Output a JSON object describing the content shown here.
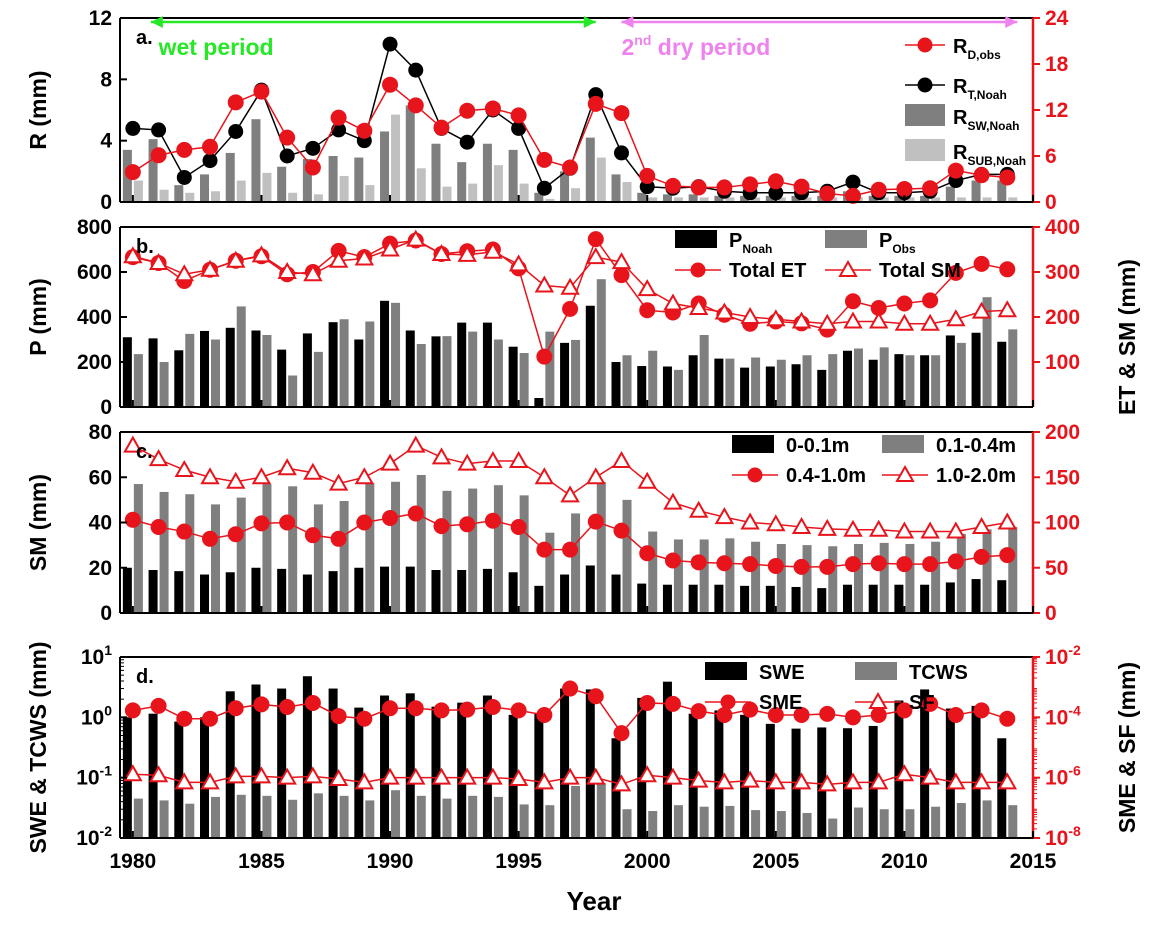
{
  "xlabel": "Year",
  "xlim": [
    1979.5,
    2015
  ],
  "xticks": [
    1980,
    1985,
    1990,
    1995,
    2000,
    2005,
    2010,
    2015
  ],
  "colors": {
    "axis_left": "#000000",
    "axis_right": "#e8141c",
    "line_red": "#e8141c",
    "bar_black": "#000000",
    "bar_gray": "#7f7f7f",
    "bar_light": "#c0c0c0",
    "wet_arrow": "#27e827",
    "dry_arrow": "#ee82ee"
  },
  "chart_data": [
    {
      "type": "bar",
      "panel": "a.",
      "ylabel": "R (mm)",
      "ylim": [
        0,
        12
      ],
      "yticks": [
        0,
        4,
        8,
        12
      ],
      "y2lim": [
        0,
        24
      ],
      "y2ticks": [
        0,
        6,
        12,
        18,
        24
      ],
      "annotations": [
        {
          "text": "wet period",
          "from": 1980,
          "to": 1998,
          "color": "#27e827"
        },
        {
          "text": "2",
          "sup": "nd",
          "rest": " dry period",
          "from": 1999,
          "to": 2014,
          "color": "#ee82ee"
        }
      ],
      "x": [
        1980,
        1981,
        1982,
        1983,
        1984,
        1985,
        1986,
        1987,
        1988,
        1989,
        1990,
        1991,
        1992,
        1993,
        1994,
        1995,
        1996,
        1997,
        1998,
        1999,
        2000,
        2001,
        2002,
        2003,
        2004,
        2005,
        2006,
        2007,
        2008,
        2009,
        2010,
        2011,
        2012,
        2013,
        2014
      ],
      "legend": [
        {
          "name": "R",
          "sub": "D,obs",
          "style": "red-circle"
        },
        {
          "name": "R",
          "sub": "T,Noah",
          "style": "black-circle"
        },
        {
          "name": "R",
          "sub": "SW,Noah",
          "style": "bar-gray"
        },
        {
          "name": "R",
          "sub": "SUB,Noah",
          "style": "bar-light"
        }
      ],
      "series": [
        {
          "name": "R_SW,Noah",
          "kind": "bar",
          "axis": "left",
          "color": "#7f7f7f",
          "values": [
            3.4,
            4.1,
            1.1,
            1.8,
            3.2,
            5.4,
            2.3,
            2.8,
            3.0,
            2.9,
            4.6,
            6.3,
            3.8,
            2.6,
            3.8,
            3.4,
            0.6,
            2.0,
            4.2,
            1.8,
            0.6,
            0.5,
            0.5,
            0.4,
            0.4,
            0.4,
            0.4,
            0.4,
            0.7,
            0.4,
            0.4,
            0.4,
            1.0,
            1.4,
            1.4
          ]
        },
        {
          "name": "R_SUB,Noah",
          "kind": "bar",
          "axis": "left",
          "color": "#c0c0c0",
          "values": [
            1.4,
            0.8,
            0.6,
            0.7,
            1.4,
            1.9,
            0.6,
            0.5,
            1.7,
            1.1,
            5.7,
            2.2,
            1.0,
            1.2,
            2.4,
            1.2,
            0.2,
            0.9,
            2.9,
            1.3,
            0.3,
            0.3,
            0.3,
            0.3,
            0.3,
            0.3,
            0.3,
            0.3,
            0.3,
            0.3,
            0.3,
            0.3,
            0.3,
            0.3,
            0.3
          ]
        },
        {
          "name": "R_T,Noah",
          "kind": "line",
          "axis": "left",
          "marker": "circle",
          "color": "#000000",
          "values": [
            4.8,
            4.7,
            1.6,
            2.7,
            4.6,
            7.3,
            3.0,
            3.5,
            4.7,
            4.0,
            10.3,
            8.6,
            4.8,
            3.9,
            6.0,
            4.8,
            0.9,
            2.2,
            7.0,
            3.2,
            1.0,
            0.9,
            1.0,
            0.7,
            0.6,
            0.6,
            0.6,
            0.7,
            1.3,
            0.6,
            0.6,
            0.7,
            1.4,
            1.8,
            1.8
          ]
        },
        {
          "name": "R_D,obs",
          "kind": "line",
          "axis": "right",
          "marker": "circle",
          "color": "#e8141c",
          "values": [
            3.9,
            6.1,
            6.8,
            7.2,
            13.0,
            14.4,
            8.4,
            4.5,
            11.0,
            9.3,
            15.3,
            12.6,
            9.7,
            11.9,
            12.2,
            11.3,
            5.5,
            4.5,
            12.8,
            11.6,
            3.4,
            2.1,
            1.9,
            1.9,
            2.3,
            2.7,
            2.0,
            1.1,
            0.8,
            1.6,
            1.7,
            1.8,
            4.1,
            3.5,
            3.2
          ]
        }
      ]
    },
    {
      "type": "bar",
      "panel": "b.",
      "ylabel": "P (mm)",
      "ylim": [
        0,
        800
      ],
      "yticks": [
        0,
        200,
        400,
        600,
        800
      ],
      "y2label": "ET & SM (mm)",
      "y2lim": [
        0,
        400
      ],
      "y2ticks": [
        100,
        200,
        300,
        400
      ],
      "x": [
        1980,
        1981,
        1982,
        1983,
        1984,
        1985,
        1986,
        1987,
        1988,
        1989,
        1990,
        1991,
        1992,
        1993,
        1994,
        1995,
        1996,
        1997,
        1998,
        1999,
        2000,
        2001,
        2002,
        2003,
        2004,
        2005,
        2006,
        2007,
        2008,
        2009,
        2010,
        2011,
        2012,
        2013,
        2014
      ],
      "legend": [
        {
          "name": "P",
          "sub": "Noah",
          "style": "bar-black"
        },
        {
          "name": "P",
          "sub": "Obs",
          "style": "bar-gray"
        },
        {
          "name": "Total ET",
          "style": "red-circle"
        },
        {
          "name": "Total SM",
          "style": "red-triangle"
        }
      ],
      "series": [
        {
          "name": "P_Noah",
          "kind": "bar",
          "axis": "left",
          "color": "#000000",
          "values": [
            310,
            305,
            252,
            338,
            352,
            340,
            255,
            327,
            377,
            300,
            472,
            340,
            314,
            375,
            375,
            268,
            40,
            285,
            450,
            200,
            182,
            180,
            230,
            215,
            175,
            180,
            190,
            165,
            250,
            210,
            235,
            230,
            318,
            330,
            290
          ]
        },
        {
          "name": "P_Obs",
          "kind": "bar",
          "axis": "left",
          "color": "#7f7f7f",
          "values": [
            235,
            200,
            325,
            300,
            447,
            320,
            140,
            245,
            390,
            380,
            463,
            280,
            315,
            335,
            300,
            240,
            335,
            298,
            568,
            230,
            250,
            165,
            320,
            215,
            220,
            210,
            230,
            235,
            260,
            265,
            230,
            230,
            285,
            488,
            345
          ]
        },
        {
          "name": "Total ET",
          "kind": "line",
          "axis": "right",
          "marker": "circle",
          "color": "#e8141c",
          "values": [
            333,
            320,
            280,
            305,
            325,
            335,
            295,
            300,
            347,
            333,
            363,
            370,
            340,
            346,
            350,
            308,
            112,
            218,
            373,
            293,
            215,
            210,
            230,
            205,
            185,
            190,
            186,
            172,
            235,
            220,
            230,
            237,
            298,
            318,
            306
          ]
        },
        {
          "name": "Total SM",
          "kind": "line",
          "axis": "right",
          "marker": "triangle",
          "color": "#e8141c",
          "values": [
            335,
            320,
            295,
            305,
            325,
            337,
            300,
            295,
            325,
            330,
            350,
            372,
            340,
            338,
            345,
            317,
            270,
            265,
            333,
            322,
            262,
            230,
            220,
            210,
            200,
            195,
            190,
            185,
            190,
            190,
            185,
            185,
            195,
            212,
            215
          ]
        }
      ]
    },
    {
      "type": "bar",
      "panel": "c.",
      "ylabel": "SM (mm)",
      "ylim": [
        0,
        80
      ],
      "yticks": [
        0,
        20,
        40,
        60,
        80
      ],
      "y2lim": [
        0,
        200
      ],
      "y2ticks": [
        0,
        50,
        100,
        150,
        200
      ],
      "x": [
        1980,
        1981,
        1982,
        1983,
        1984,
        1985,
        1986,
        1987,
        1988,
        1989,
        1990,
        1991,
        1992,
        1993,
        1994,
        1995,
        1996,
        1997,
        1998,
        1999,
        2000,
        2001,
        2002,
        2003,
        2004,
        2005,
        2006,
        2007,
        2008,
        2009,
        2010,
        2011,
        2012,
        2013,
        2014
      ],
      "legend": [
        {
          "name": "0-0.1m",
          "style": "bar-black"
        },
        {
          "name": "0.1-0.4m",
          "style": "bar-gray"
        },
        {
          "name": "0.4-1.0m",
          "style": "red-circle"
        },
        {
          "name": "1.0-2.0m",
          "style": "red-triangle"
        }
      ],
      "series": [
        {
          "name": "0-0.1m",
          "kind": "bar",
          "axis": "left",
          "color": "#000000",
          "values": [
            20,
            19,
            18.5,
            17,
            18,
            20,
            19.5,
            17,
            18.5,
            20,
            20.5,
            20.5,
            19,
            19,
            19.5,
            18,
            12,
            17,
            21,
            17,
            13,
            12.5,
            12.5,
            12.5,
            12,
            12,
            11.5,
            11,
            12.5,
            12.5,
            12.5,
            12.5,
            13.5,
            15,
            14.5
          ]
        },
        {
          "name": "0.1-0.4m",
          "kind": "bar",
          "axis": "left",
          "color": "#7f7f7f",
          "values": [
            57,
            53.5,
            52.5,
            48,
            51,
            57,
            56,
            48,
            49.5,
            57.5,
            58,
            61,
            54,
            55,
            56.5,
            52,
            35.5,
            44,
            58,
            50,
            36,
            32.5,
            32.5,
            33,
            31.5,
            30.5,
            30,
            29.5,
            30.5,
            31,
            30.5,
            31.5,
            35,
            37,
            38
          ]
        },
        {
          "name": "0.4-1.0m",
          "kind": "line",
          "axis": "right",
          "marker": "circle",
          "color": "#e8141c",
          "values": [
            103,
            95,
            90,
            82,
            87,
            99,
            100,
            86,
            82,
            100,
            105,
            110,
            96,
            98,
            102,
            95,
            70,
            70,
            101,
            91,
            66,
            58,
            56,
            55,
            54,
            52,
            51,
            51,
            54,
            55,
            54,
            54,
            57,
            62,
            64
          ]
        },
        {
          "name": "1.0-2.0m",
          "kind": "line",
          "axis": "right",
          "marker": "triangle",
          "color": "#e8141c",
          "values": [
            185,
            170,
            158,
            150,
            145,
            150,
            160,
            155,
            143,
            150,
            165,
            185,
            172,
            165,
            168,
            168,
            150,
            130,
            150,
            168,
            145,
            122,
            113,
            106,
            100,
            98,
            95,
            93,
            92,
            92,
            90,
            90,
            90,
            95,
            100
          ]
        }
      ]
    },
    {
      "type": "bar",
      "panel": "d.",
      "ylabel": "SWE & TCWS (mm)",
      "yscale": "log",
      "ylim": [
        0.01,
        10
      ],
      "yticks": [
        "10^-2",
        "10^-1",
        "10^0",
        "10^1"
      ],
      "y2label": "SME & SF (mm)",
      "y2scale": "log",
      "y2lim": [
        1e-08,
        0.01
      ],
      "y2ticks": [
        "10^-8",
        "10^-6",
        "10^-4",
        "10^-2"
      ],
      "x": [
        1980,
        1981,
        1982,
        1983,
        1984,
        1985,
        1986,
        1987,
        1988,
        1989,
        1990,
        1991,
        1992,
        1993,
        1994,
        1995,
        1996,
        1997,
        1998,
        1999,
        2000,
        2001,
        2002,
        2003,
        2004,
        2005,
        2006,
        2007,
        2008,
        2009,
        2010,
        2011,
        2012,
        2013,
        2014
      ],
      "legend": [
        {
          "name": "SWE",
          "style": "bar-black"
        },
        {
          "name": "TCWS",
          "style": "bar-gray"
        },
        {
          "name": "SME",
          "style": "red-circle"
        },
        {
          "name": "SF",
          "style": "red-triangle"
        }
      ],
      "series": [
        {
          "name": "SWE",
          "kind": "bar",
          "axis": "left",
          "color": "#000000",
          "values": [
            1.0,
            1.15,
            0.85,
            1.0,
            2.7,
            3.5,
            3.0,
            4.8,
            3.0,
            1.45,
            2.3,
            2.5,
            1.5,
            1.75,
            2.3,
            1.1,
            1.15,
            3.0,
            2.9,
            0.45,
            2.1,
            3.9,
            1.15,
            1.3,
            1.1,
            0.78,
            0.65,
            0.68,
            0.66,
            0.72,
            1.9,
            2.9,
            1.4,
            1.55,
            0.45
          ]
        },
        {
          "name": "TCWS",
          "kind": "bar",
          "axis": "left",
          "color": "#7f7f7f",
          "values": [
            0.045,
            0.042,
            0.037,
            0.048,
            0.052,
            0.05,
            0.043,
            0.055,
            0.05,
            0.042,
            0.062,
            0.05,
            0.045,
            0.05,
            0.048,
            0.036,
            0.035,
            0.073,
            0.082,
            0.03,
            0.028,
            0.035,
            0.033,
            0.034,
            0.029,
            0.028,
            0.026,
            0.021,
            0.032,
            0.03,
            0.03,
            0.033,
            0.038,
            0.042,
            0.035
          ]
        },
        {
          "name": "SME",
          "kind": "line",
          "axis": "right",
          "marker": "circle",
          "color": "#e8141c",
          "values": [
            0.00017,
            0.00024,
            9e-05,
            9e-05,
            0.0002,
            0.00027,
            0.00022,
            0.0003,
            0.00011,
            9e-05,
            0.0002,
            0.0002,
            0.00017,
            0.00018,
            0.00022,
            0.00017,
            0.00012,
            0.0009,
            0.0005,
            3e-05,
            0.0003,
            0.00028,
            0.00016,
            0.00012,
            0.00018,
            0.00012,
            0.00012,
            0.00013,
            0.0001,
            0.00012,
            0.00017,
            0.00028,
            0.00012,
            0.00017,
            9e-05
          ]
        },
        {
          "name": "SF",
          "kind": "line",
          "axis": "right",
          "marker": "triangle",
          "color": "#e8141c",
          "values": [
            1.3e-06,
            1.2e-06,
            7e-07,
            7e-07,
            1.1e-06,
            1.1e-06,
            1e-06,
            1.1e-06,
            9e-07,
            7e-07,
            1e-06,
            1e-06,
            1e-06,
            1e-06,
            1e-06,
            9e-07,
            7e-07,
            1e-06,
            1e-06,
            6e-07,
            1.2e-06,
            1e-06,
            8e-07,
            7e-07,
            8e-07,
            7e-07,
            7e-07,
            6e-07,
            7e-07,
            7e-07,
            1.3e-06,
            1e-06,
            7e-07,
            7e-07,
            7e-07
          ]
        }
      ]
    }
  ]
}
